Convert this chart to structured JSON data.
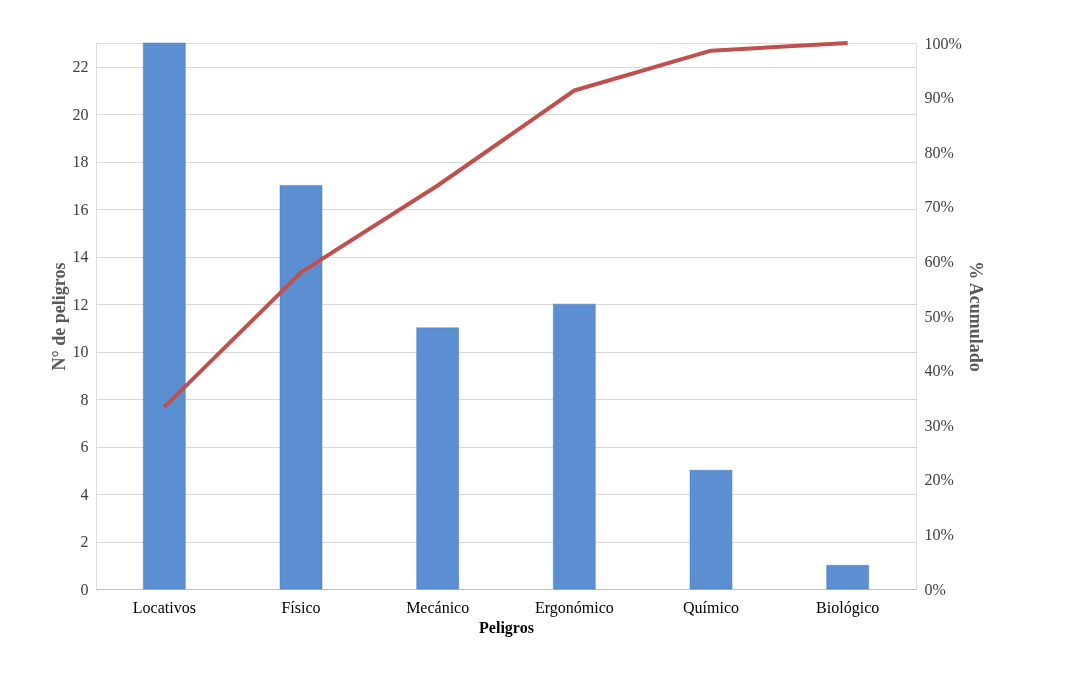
{
  "chart_data": {
    "type": "bar",
    "xlabel": "Peligros",
    "ylabel": "N° de peligros",
    "y2label": "% Acumulado",
    "categories": [
      "Locativos",
      "Físico",
      "Mecánico",
      "Ergonómico",
      "Químico",
      "Biológico"
    ],
    "series": [
      {
        "color": "#5b8fd1",
        "values": [
          23,
          17,
          11,
          12,
          5,
          1
        ]
      },
      {
        "type": "line",
        "axis": "y2",
        "color": "#c0504d",
        "values": [
          33.3,
          58.0,
          73.9,
          91.3,
          98.6,
          100
        ]
      }
    ],
    "ylim": [
      0,
      23
    ],
    "yticks": [
      0,
      2,
      4,
      6,
      8,
      10,
      12,
      14,
      16,
      18,
      20,
      22
    ],
    "y2lim": [
      0,
      100
    ],
    "y2ticks": [
      {
        "value": 0,
        "label": "0%"
      },
      {
        "value": 10,
        "label": "10%"
      },
      {
        "value": 20,
        "label": "20%"
      },
      {
        "value": 30,
        "label": "30%"
      },
      {
        "value": 40,
        "label": "40%"
      },
      {
        "value": 50,
        "label": "50%"
      },
      {
        "value": 60,
        "label": "60%"
      },
      {
        "value": 70,
        "label": "70%"
      },
      {
        "value": 80,
        "label": "80%"
      },
      {
        "value": 90,
        "label": "90%"
      },
      {
        "value": 100,
        "label": "100%"
      }
    ],
    "grid": "y",
    "legend": false,
    "marker": "none",
    "line_style": "solid"
  }
}
